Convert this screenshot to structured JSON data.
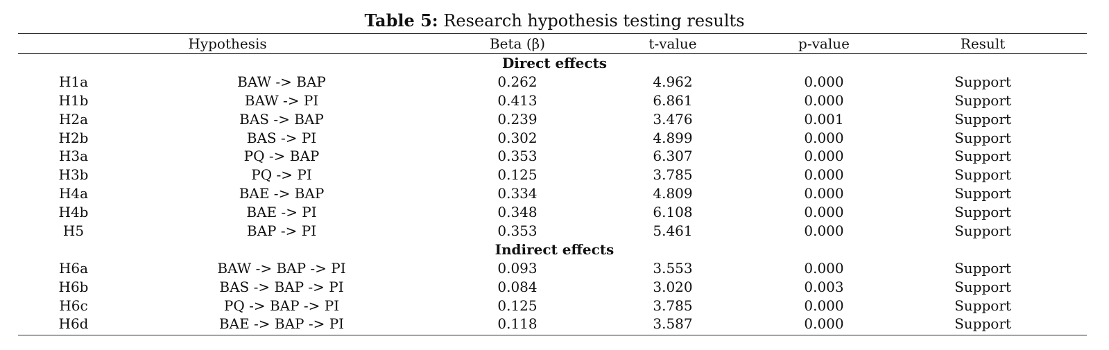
{
  "table": {
    "caption_label": "Table 5:",
    "caption_text": "Research hypothesis testing results",
    "columns": [
      "Hypothesis",
      "Beta (β)",
      "t-value",
      "p-value",
      "Result"
    ],
    "sections": [
      {
        "title": "Direct effects",
        "rows": [
          {
            "id": "H1a",
            "path": "BAW -> BAP",
            "beta": "0.262",
            "t": "4.962",
            "p": "0.000",
            "result": "Support"
          },
          {
            "id": "H1b",
            "path": "BAW -> PI",
            "beta": "0.413",
            "t": "6.861",
            "p": "0.000",
            "result": "Support"
          },
          {
            "id": "H2a",
            "path": "BAS -> BAP",
            "beta": "0.239",
            "t": "3.476",
            "p": "0.001",
            "result": "Support"
          },
          {
            "id": "H2b",
            "path": "BAS -> PI",
            "beta": "0.302",
            "t": "4.899",
            "p": "0.000",
            "result": "Support"
          },
          {
            "id": "H3a",
            "path": "PQ -> BAP",
            "beta": "0.353",
            "t": "6.307",
            "p": "0.000",
            "result": "Support"
          },
          {
            "id": "H3b",
            "path": "PQ -> PI",
            "beta": "0.125",
            "t": "3.785",
            "p": "0.000",
            "result": "Support"
          },
          {
            "id": "H4a",
            "path": "BAE -> BAP",
            "beta": "0.334",
            "t": "4.809",
            "p": "0.000",
            "result": "Support"
          },
          {
            "id": "H4b",
            "path": "BAE -> PI",
            "beta": "0.348",
            "t": "6.108",
            "p": "0.000",
            "result": "Support"
          },
          {
            "id": "H5",
            "path": "BAP -> PI",
            "beta": "0.353",
            "t": "5.461",
            "p": "0.000",
            "result": "Support"
          }
        ]
      },
      {
        "title": "Indirect effects",
        "rows": [
          {
            "id": "H6a",
            "path": "BAW -> BAP -> PI",
            "beta": "0.093",
            "t": "3.553",
            "p": "0.000",
            "result": "Support"
          },
          {
            "id": "H6b",
            "path": "BAS -> BAP -> PI",
            "beta": "0.084",
            "t": "3.020",
            "p": "0.003",
            "result": "Support"
          },
          {
            "id": "H6c",
            "path": "PQ -> BAP -> PI",
            "beta": "0.125",
            "t": "3.785",
            "p": "0.000",
            "result": "Support"
          },
          {
            "id": "H6d",
            "path": "BAE -> BAP -> PI",
            "beta": "0.118",
            "t": "3.587",
            "p": "0.000",
            "result": "Support"
          }
        ]
      }
    ]
  }
}
